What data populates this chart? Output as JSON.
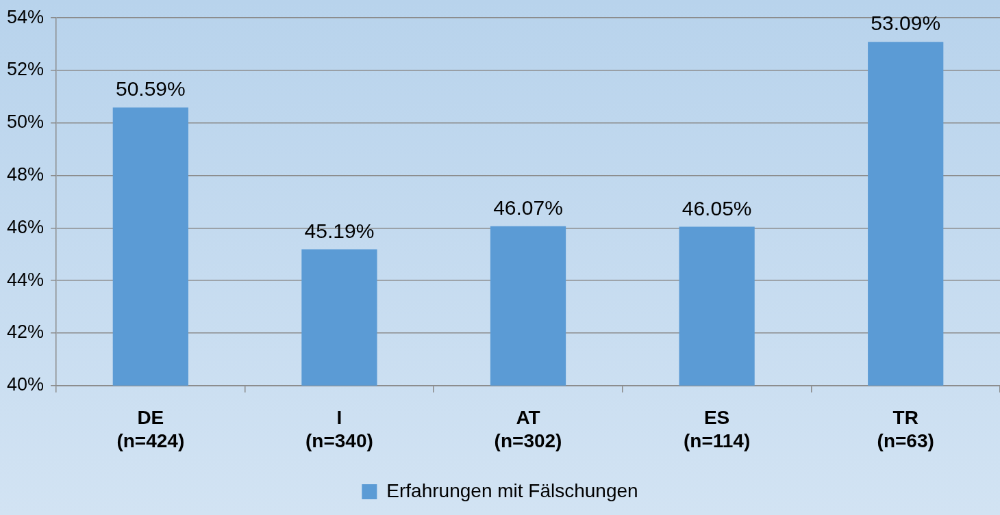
{
  "chart_data": {
    "type": "bar",
    "categories": [
      "DE\n(n=424)",
      "I\n(n=340)",
      "AT\n(n=302)",
      "ES\n(n=114)",
      "TR\n(n=63)"
    ],
    "series": [
      {
        "name": "Erfahrungen mit Fälschungen",
        "color": "#5b9bd5",
        "values": [
          50.59,
          45.19,
          46.07,
          46.05,
          53.09
        ],
        "value_labels": [
          "50.59%",
          "45.19%",
          "46.07%",
          "46.05%",
          "53.09%"
        ]
      }
    ],
    "ylim": [
      40,
      54
    ],
    "yticks": [
      {
        "value": 40,
        "label": "40%"
      },
      {
        "value": 42,
        "label": "42%"
      },
      {
        "value": 44,
        "label": "44%"
      },
      {
        "value": 46,
        "label": "46%"
      },
      {
        "value": 48,
        "label": "48%"
      },
      {
        "value": 50,
        "label": "50%"
      },
      {
        "value": 52,
        "label": "52%"
      },
      {
        "value": 54,
        "label": "54%"
      }
    ],
    "grid": "y",
    "legend": "bottom"
  }
}
